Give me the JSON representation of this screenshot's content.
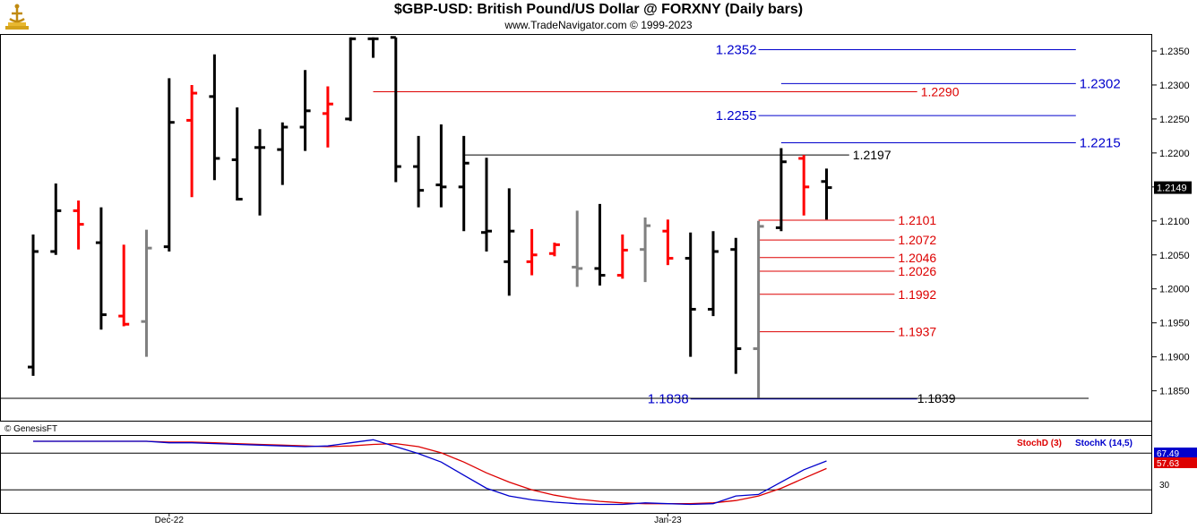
{
  "header": {
    "title": "$GBP-USD:  British Pound/US Dollar @ FORXNY  (Daily bars)",
    "subtitle": "www.TradeNavigator.com © 1999-2023",
    "copyright": "© GenesisFT"
  },
  "colors": {
    "up_bar": "#000000",
    "down_bar": "#ff0000",
    "neutral_bar": "#808080",
    "blue_level": "#0000cc",
    "red_level": "#dd0000",
    "stoch_d": "#dd0000",
    "stoch_k": "#0000cc",
    "price_tag_bg": "#000000"
  },
  "chart_data": [
    {
      "type": "bar",
      "title": "$GBP-USD:  British Pound/US Dollar @ FORXNY  (Daily bars)",
      "ylim": [
        1.181,
        1.2375
      ],
      "yticks": [
        "1.2350",
        "1.2300",
        "1.2250",
        "1.2200",
        "1.2150",
        "1.2100",
        "1.2050",
        "1.2000",
        "1.1950",
        "1.1900",
        "1.1850"
      ],
      "ytick_values": [
        1.235,
        1.23,
        1.225,
        1.22,
        1.215,
        1.21,
        1.205,
        1.2,
        1.195,
        1.19,
        1.185
      ],
      "xlabels": [
        {
          "label": "Dec-22",
          "index": 6
        },
        {
          "label": "Jan-23",
          "index": 28
        }
      ],
      "last_price": "1.2149",
      "ohlc": [
        {
          "o": 1.1885,
          "h": 1.208,
          "l": 1.1872,
          "c": 1.2055,
          "col": "up"
        },
        {
          "o": 1.2055,
          "h": 1.2155,
          "l": 1.205,
          "c": 1.2115,
          "col": "up"
        },
        {
          "o": 1.2115,
          "h": 1.213,
          "l": 1.2058,
          "c": 1.2095,
          "col": "down"
        },
        {
          "o": 1.2068,
          "h": 1.212,
          "l": 1.194,
          "c": 1.1962,
          "col": "up"
        },
        {
          "o": 1.196,
          "h": 1.2065,
          "l": 1.1945,
          "c": 1.1948,
          "col": "down"
        },
        {
          "o": 1.1952,
          "h": 1.2087,
          "l": 1.19,
          "c": 1.206,
          "col": "neutral"
        },
        {
          "o": 1.2062,
          "h": 1.231,
          "l": 1.2055,
          "c": 1.2245,
          "col": "up"
        },
        {
          "o": 1.2248,
          "h": 1.23,
          "l": 1.2135,
          "c": 1.2288,
          "col": "down"
        },
        {
          "o": 1.2283,
          "h": 1.2345,
          "l": 1.216,
          "c": 1.2192,
          "col": "up"
        },
        {
          "o": 1.219,
          "h": 1.2267,
          "l": 1.213,
          "c": 1.2132,
          "col": "up"
        },
        {
          "o": 1.2208,
          "h": 1.2235,
          "l": 1.2108,
          "c": 1.2208,
          "col": "up"
        },
        {
          "o": 1.2205,
          "h": 1.2245,
          "l": 1.2153,
          "c": 1.2238,
          "col": "up"
        },
        {
          "o": 1.2238,
          "h": 1.2322,
          "l": 1.2203,
          "c": 1.2262,
          "col": "up"
        },
        {
          "o": 1.2258,
          "h": 1.2298,
          "l": 1.2208,
          "c": 1.2272,
          "col": "down"
        },
        {
          "o": 1.225,
          "h": 1.237,
          "l": 1.2247,
          "c": 1.2368,
          "col": "up"
        },
        {
          "o": 1.2368,
          "h": 1.237,
          "l": 1.234,
          "c": 1.2368,
          "col": "up"
        },
        {
          "o": 1.237,
          "h": 1.237,
          "l": 1.2157,
          "c": 1.218,
          "col": "up"
        },
        {
          "o": 1.218,
          "h": 1.2225,
          "l": 1.212,
          "c": 1.2145,
          "col": "up"
        },
        {
          "o": 1.2153,
          "h": 1.2242,
          "l": 1.212,
          "c": 1.215,
          "col": "up"
        },
        {
          "o": 1.215,
          "h": 1.2225,
          "l": 1.2085,
          "c": 1.2185,
          "col": "up"
        },
        {
          "o": 1.2083,
          "h": 1.2193,
          "l": 1.2055,
          "c": 1.2085,
          "col": "up"
        },
        {
          "o": 1.204,
          "h": 1.2148,
          "l": 1.199,
          "c": 1.2085,
          "col": "up"
        },
        {
          "o": 1.204,
          "h": 1.2088,
          "l": 1.202,
          "c": 1.205,
          "col": "down"
        },
        {
          "o": 1.2052,
          "h": 1.2068,
          "l": 1.2048,
          "c": 1.2065,
          "col": "down"
        },
        {
          "o": 1.2032,
          "h": 1.2115,
          "l": 1.2003,
          "c": 1.203,
          "col": "neutral"
        },
        {
          "o": 1.203,
          "h": 1.2125,
          "l": 1.2005,
          "c": 1.202,
          "col": "up"
        },
        {
          "o": 1.202,
          "h": 1.208,
          "l": 1.2015,
          "c": 1.2057,
          "col": "down"
        },
        {
          "o": 1.2058,
          "h": 1.2105,
          "l": 1.201,
          "c": 1.2093,
          "col": "neutral"
        },
        {
          "o": 1.2085,
          "h": 1.2102,
          "l": 1.2035,
          "c": 1.2045,
          "col": "down"
        },
        {
          "o": 1.2045,
          "h": 1.2083,
          "l": 1.19,
          "c": 1.197,
          "col": "up"
        },
        {
          "o": 1.197,
          "h": 1.2085,
          "l": 1.196,
          "c": 1.2055,
          "col": "up"
        },
        {
          "o": 1.2058,
          "h": 1.2075,
          "l": 1.1875,
          "c": 1.1912,
          "col": "up"
        },
        {
          "o": 1.1912,
          "h": 1.21,
          "l": 1.184,
          "c": 1.2092,
          "col": "neutral"
        },
        {
          "o": 1.209,
          "h": 1.2207,
          "l": 1.2085,
          "c": 1.2187,
          "col": "up"
        },
        {
          "o": 1.2192,
          "h": 1.2197,
          "l": 1.2108,
          "c": 1.215,
          "col": "down"
        },
        {
          "o": 1.2158,
          "h": 1.2177,
          "l": 1.2102,
          "c": 1.2149,
          "col": "up"
        }
      ],
      "levels": [
        {
          "value": 1.2352,
          "label": "1.2352",
          "color": "blue",
          "from": 32,
          "to": 46,
          "label_side": "left"
        },
        {
          "value": 1.2302,
          "label": "1.2302",
          "color": "blue",
          "from": 33,
          "to": 46,
          "label_side": "right"
        },
        {
          "value": 1.229,
          "label": "1.2290",
          "color": "red",
          "from": 15,
          "to": 39,
          "label_side": "right"
        },
        {
          "value": 1.2255,
          "label": "1.2255",
          "color": "blue",
          "from": 32,
          "to": 46,
          "label_side": "left"
        },
        {
          "value": 1.2215,
          "label": "1.2215",
          "color": "blue",
          "from": 33,
          "to": 46,
          "label_side": "right"
        },
        {
          "value": 1.2197,
          "label": "1.2197",
          "color": "black",
          "from": 19,
          "to": 36,
          "label_side": "right"
        },
        {
          "value": 1.2101,
          "label": "1.2101",
          "color": "red",
          "from": 32,
          "to": 38,
          "label_side": "right"
        },
        {
          "value": 1.2072,
          "label": "1.2072",
          "color": "red",
          "from": 32,
          "to": 38,
          "label_side": "right"
        },
        {
          "value": 1.2046,
          "label": "1.2046",
          "color": "red",
          "from": 32,
          "to": 38,
          "label_side": "right"
        },
        {
          "value": 1.2026,
          "label": "1.2026",
          "color": "red",
          "from": 32,
          "to": 38,
          "label_side": "right"
        },
        {
          "value": 1.1992,
          "label": "1.1992",
          "color": "red",
          "from": 32,
          "to": 38,
          "label_side": "right"
        },
        {
          "value": 1.1937,
          "label": "1.1937",
          "color": "red",
          "from": 32,
          "to": 38,
          "label_side": "right"
        },
        {
          "value": 1.1838,
          "label": "1.1838",
          "color": "blue",
          "from": 29,
          "to": 39,
          "label_side": "left"
        },
        {
          "value": 1.1839,
          "label": "1.1839",
          "color": "black",
          "from": 0,
          "to": 47,
          "label_side": "mid"
        }
      ]
    },
    {
      "type": "line",
      "title": "",
      "ylim": [
        0,
        100
      ],
      "reference_line": 30,
      "reference_label": "30",
      "legend": [
        "StochD (3)",
        "StochK (14,5)"
      ],
      "series": [
        {
          "name": "StochD (3)",
          "color": "red",
          "values": [
            93,
            93,
            93,
            93,
            93,
            93,
            92,
            92,
            91,
            90,
            89,
            88,
            87,
            86,
            87,
            89,
            90,
            86,
            78,
            66,
            52,
            40,
            30,
            23,
            18,
            15,
            13,
            12,
            12,
            12,
            13,
            16,
            22,
            32,
            45,
            57.63
          ]
        },
        {
          "name": "StochK (14,5)",
          "color": "blue",
          "values": [
            93,
            93,
            93,
            93,
            93,
            93,
            91,
            91,
            90,
            89,
            88,
            87,
            86,
            87,
            91,
            95,
            86,
            77,
            66,
            49,
            32,
            22,
            17,
            14,
            12,
            11,
            11,
            13,
            12,
            11,
            12,
            22,
            24,
            40,
            56,
            67.49
          ]
        }
      ],
      "last_values": [
        "67.49",
        "57.63"
      ]
    }
  ]
}
